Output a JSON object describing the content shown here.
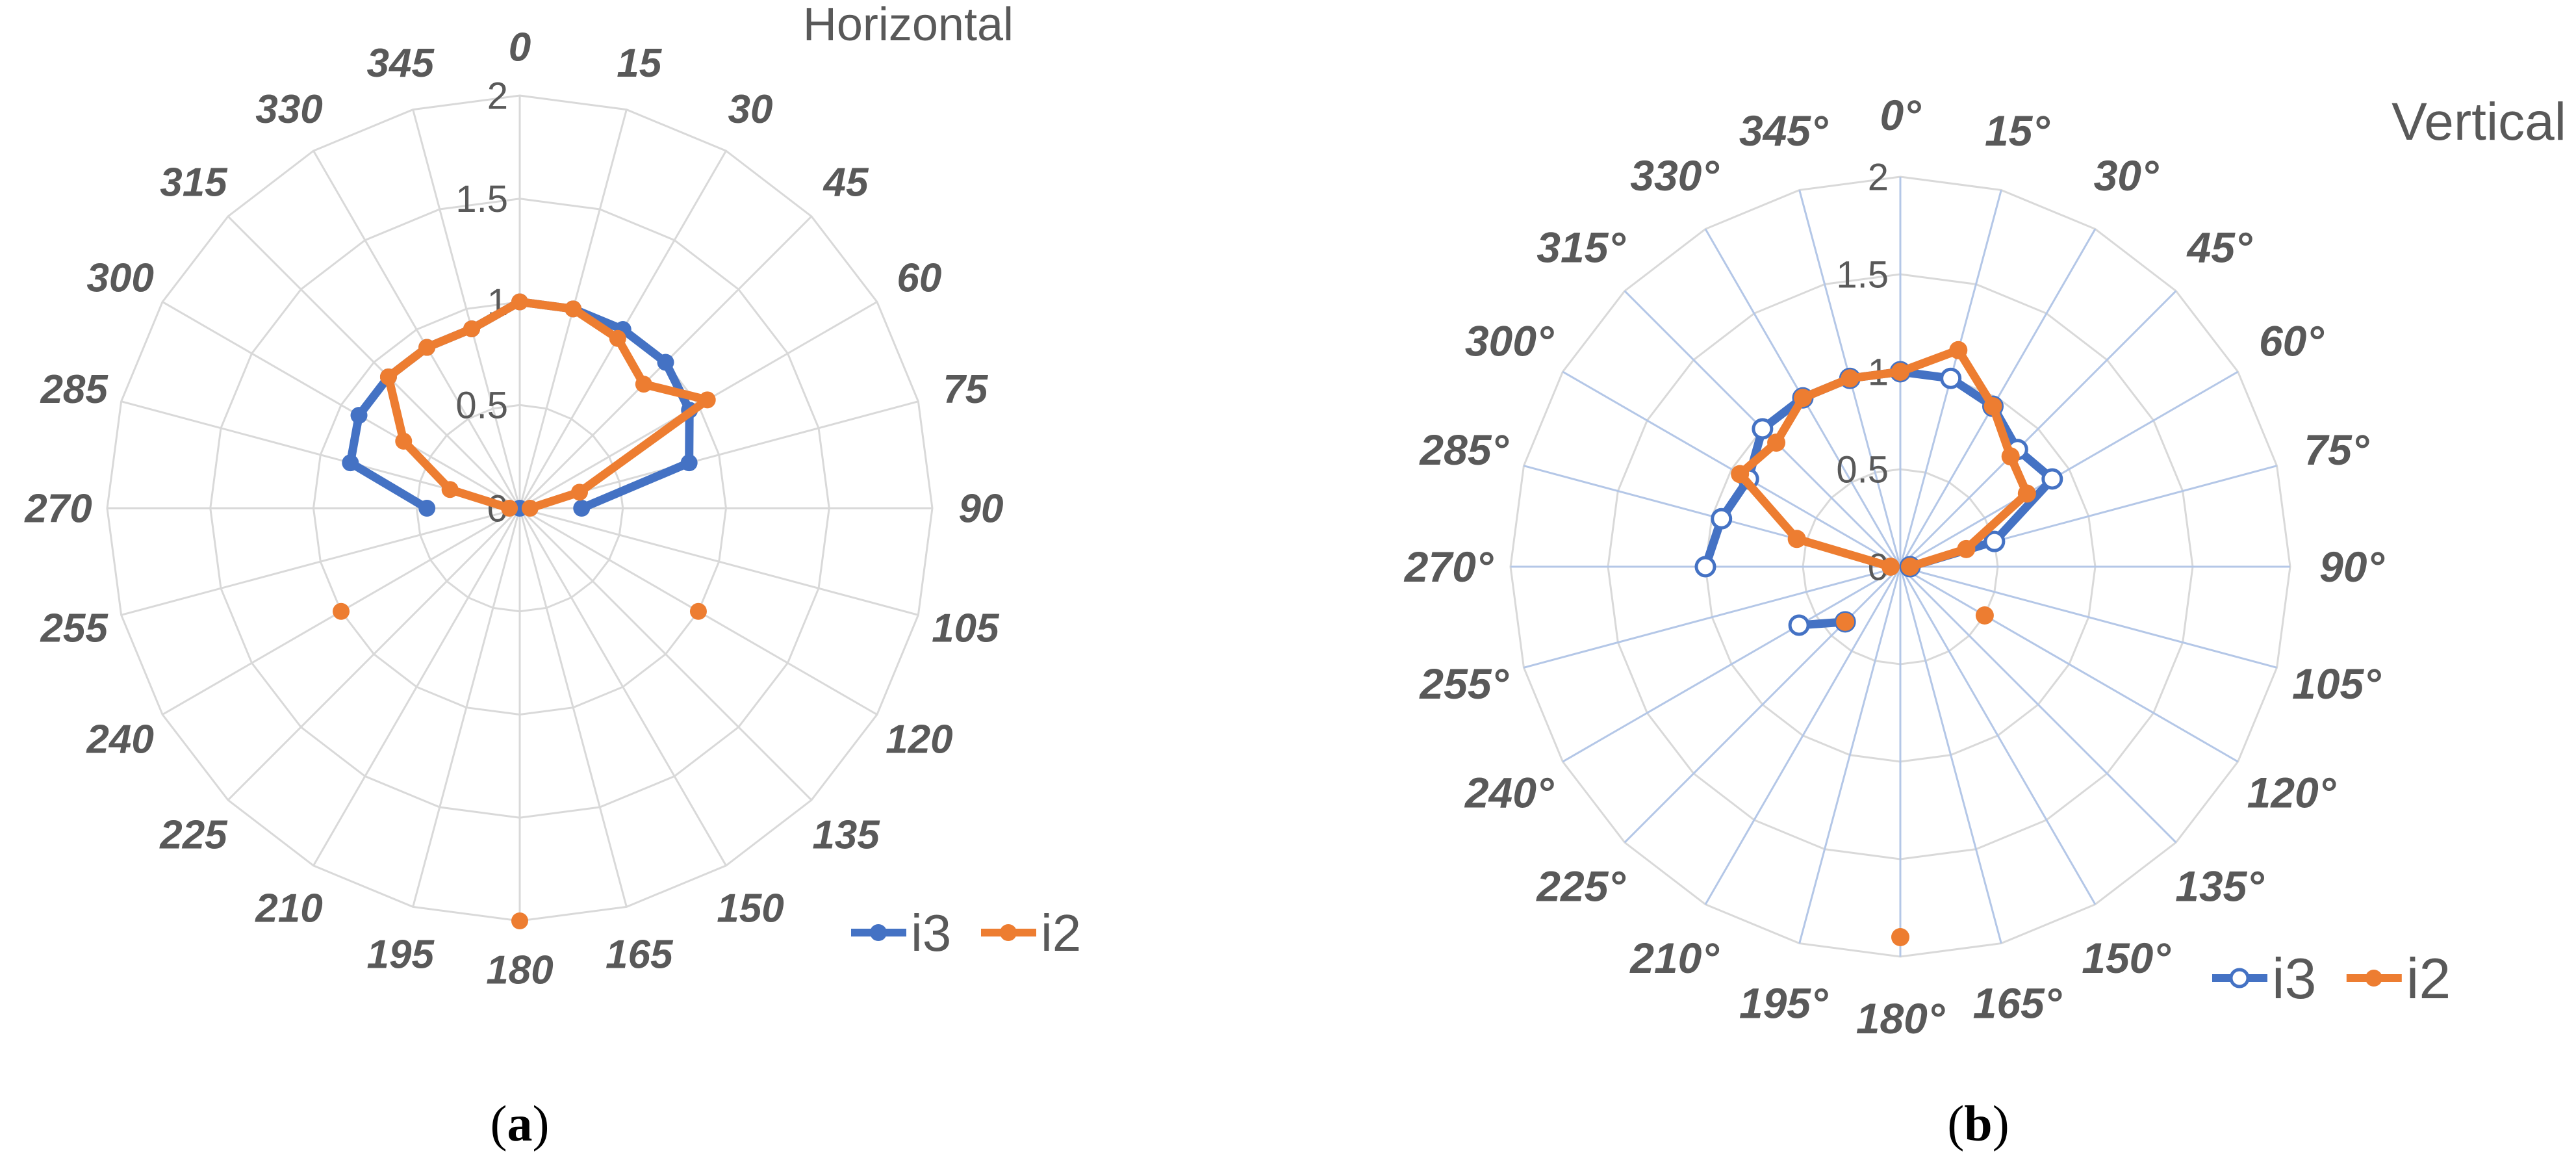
{
  "chart_data": [
    {
      "type": "radar",
      "title": "Horizontal",
      "caption": "(a)",
      "radial_range": [
        0,
        2
      ],
      "radial_ticks": [
        "0",
        "0.5",
        "1",
        "1.5",
        "2"
      ],
      "angle_labels": [
        "0",
        "15",
        "30",
        "45",
        "60",
        "75",
        "90",
        "105",
        "120",
        "135",
        "150",
        "165",
        "180",
        "195",
        "210",
        "225",
        "240",
        "255",
        "270",
        "285",
        "300",
        "315",
        "330",
        "345"
      ],
      "legend_position": "bottom-right",
      "legend": [
        "i3",
        "i2"
      ],
      "series": [
        {
          "name": "i3",
          "color": "#4472C4",
          "marker": "filled",
          "values": [
            1.0,
            1.0,
            1.0,
            1.0,
            0.95,
            0.85,
            0.3,
            null,
            null,
            null,
            null,
            null,
            0.0,
            null,
            null,
            null,
            null,
            null,
            0.45,
            0.85,
            0.9,
            0.9,
            0.9,
            0.9
          ]
        },
        {
          "name": "i2",
          "color": "#ED7D31",
          "marker": "filled",
          "values": [
            1.0,
            1.0,
            0.95,
            0.85,
            1.05,
            0.3,
            0.05,
            null,
            1.0,
            null,
            null,
            null,
            2.0,
            null,
            null,
            null,
            1.0,
            null,
            0.05,
            0.35,
            0.65,
            0.9,
            0.9,
            0.9
          ]
        }
      ]
    },
    {
      "type": "radar",
      "title": "Vertical",
      "caption": "(b)",
      "radial_range": [
        0,
        2
      ],
      "radial_ticks": [
        "0",
        "0.5",
        "1",
        "1.5",
        "2"
      ],
      "angle_labels": [
        "0°",
        "15°",
        "30°",
        "45°",
        "60°",
        "75°",
        "90°",
        "105°",
        "120°",
        "135°",
        "150°",
        "165°",
        "180°",
        "195°",
        "210°",
        "225°",
        "240°",
        "255°",
        "270°",
        "285°",
        "300°",
        "315°",
        "330°",
        "345°"
      ],
      "legend_position": "bottom-right",
      "legend": [
        "i3",
        "i2"
      ],
      "series": [
        {
          "name": "i3",
          "color": "#4472C4",
          "marker": "hollow",
          "values": [
            1.0,
            1.0,
            0.95,
            0.85,
            0.9,
            0.5,
            0.05,
            null,
            null,
            null,
            null,
            null,
            null,
            null,
            null,
            0.4,
            0.6,
            null,
            1.0,
            0.95,
            0.9,
            1.0,
            1.0,
            1.0
          ]
        },
        {
          "name": "i2",
          "color": "#ED7D31",
          "marker": "filled",
          "values": [
            1.0,
            1.15,
            0.95,
            0.8,
            0.75,
            0.35,
            0.05,
            null,
            0.5,
            null,
            null,
            null,
            1.9,
            null,
            null,
            0.4,
            null,
            null,
            0.05,
            0.55,
            0.95,
            0.9,
            1.0,
            1.0
          ]
        }
      ]
    }
  ]
}
